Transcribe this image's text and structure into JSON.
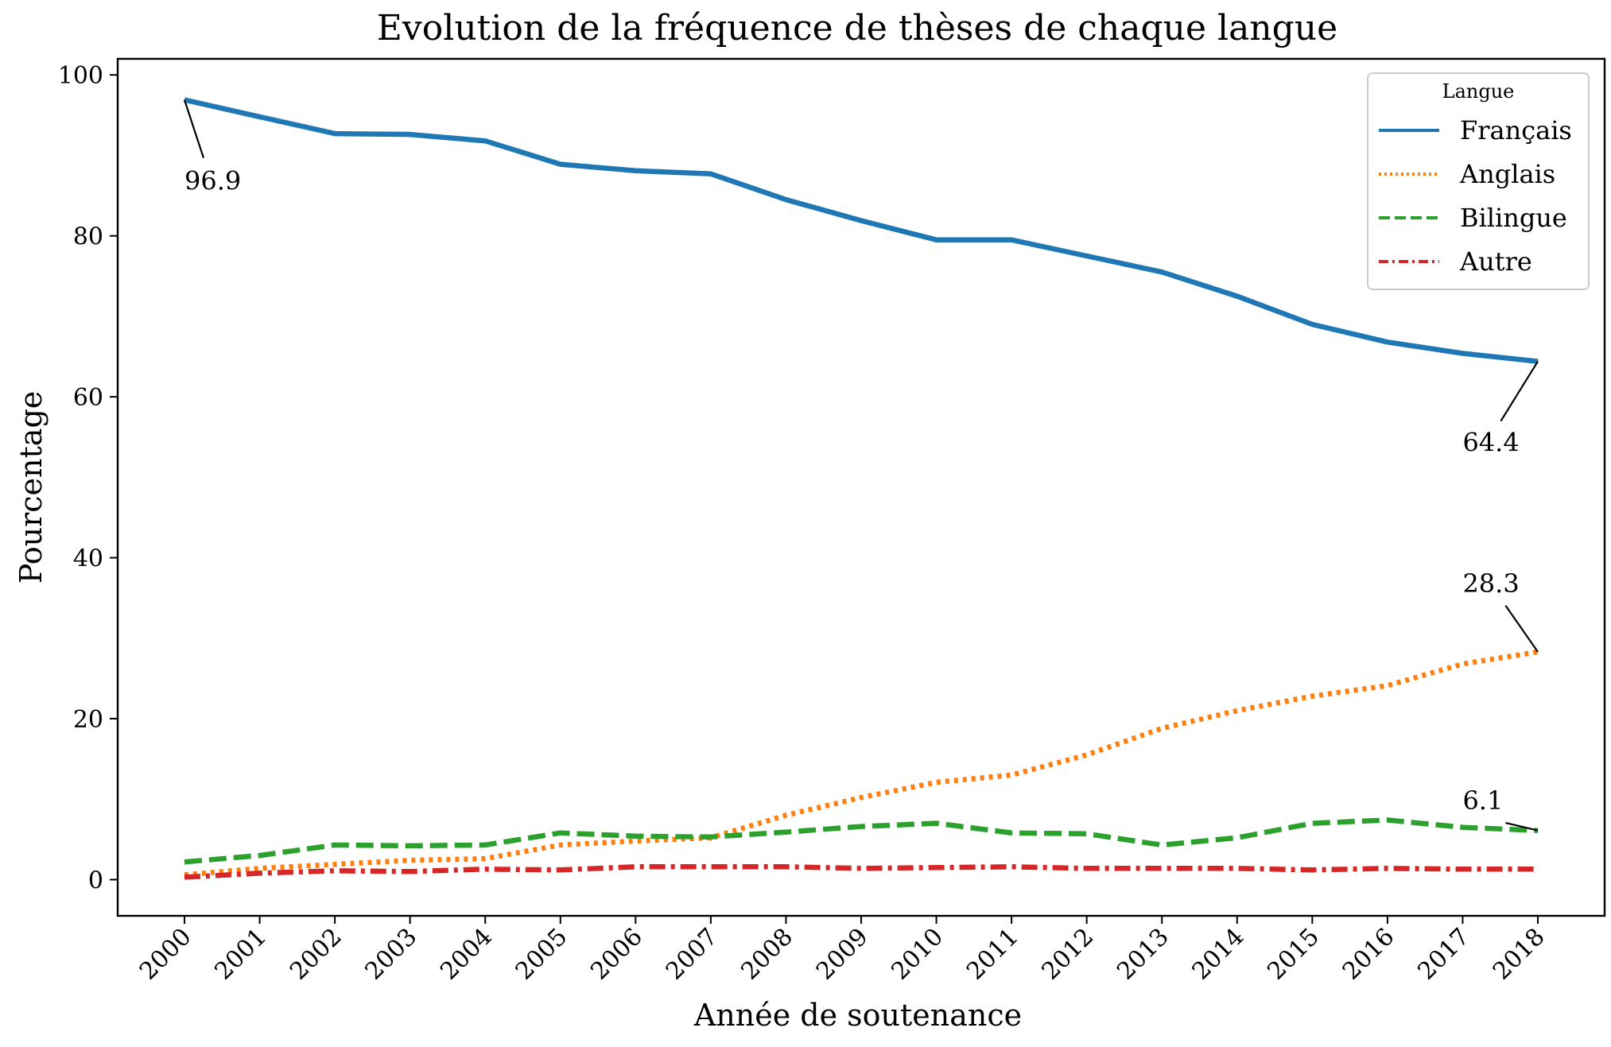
{
  "chart_data": {
    "type": "line",
    "title": "Evolution de la fréquence de thèses de chaque langue",
    "xlabel": "Année de soutenance",
    "ylabel": "Pourcentage",
    "x": [
      "2000",
      "2001",
      "2002",
      "2003",
      "2004",
      "2005",
      "2006",
      "2007",
      "2008",
      "2009",
      "2010",
      "2011",
      "2012",
      "2013",
      "2014",
      "2015",
      "2016",
      "2017",
      "2018"
    ],
    "ylim": [
      -4.5,
      102
    ],
    "yticks": [
      "0",
      "20",
      "40",
      "60",
      "80",
      "100"
    ],
    "grid": false,
    "legend": {
      "title": "Langue",
      "position": "top-right"
    },
    "series": [
      {
        "name": "Français",
        "style": "solid",
        "color": "#1f77b4",
        "values": [
          96.9,
          94.8,
          92.7,
          92.6,
          91.8,
          88.9,
          88.1,
          87.7,
          84.5,
          81.9,
          79.5,
          79.5,
          77.5,
          75.5,
          72.5,
          69.0,
          66.8,
          65.4,
          64.4
        ]
      },
      {
        "name": "Anglais",
        "style": "dotted",
        "color": "#ff7f0e",
        "values": [
          0.6,
          1.4,
          1.9,
          2.4,
          2.6,
          4.3,
          4.8,
          5.2,
          8.0,
          10.2,
          12.1,
          13.0,
          15.5,
          18.8,
          21.0,
          22.8,
          24.1,
          26.8,
          28.3
        ]
      },
      {
        "name": "Bilingue",
        "style": "dashed",
        "color": "#2ca02c",
        "values": [
          2.2,
          3.0,
          4.3,
          4.2,
          4.3,
          5.8,
          5.4,
          5.3,
          5.9,
          6.6,
          7.0,
          5.8,
          5.7,
          4.3,
          5.2,
          7.0,
          7.4,
          6.5,
          6.1
        ]
      },
      {
        "name": "Autre",
        "style": "dashdot",
        "color": "#d62728",
        "values": [
          0.3,
          0.8,
          1.1,
          1.0,
          1.3,
          1.2,
          1.6,
          1.6,
          1.6,
          1.4,
          1.5,
          1.6,
          1.4,
          1.4,
          1.4,
          1.2,
          1.4,
          1.3,
          1.3
        ]
      }
    ],
    "annotations": [
      {
        "text": "96.9",
        "x": "2000",
        "y": 96.9,
        "text_x": "2000",
        "text_y": 88.5
      },
      {
        "text": "64.4",
        "x": "2018",
        "y": 64.4,
        "text_x": "2017",
        "text_y": 56.0
      },
      {
        "text": "28.3",
        "x": "2018",
        "y": 28.3,
        "text_x": "2017",
        "text_y": 38.5
      },
      {
        "text": "6.1",
        "x": "2018",
        "y": 6.1,
        "text_x": "2017",
        "text_y": 11.5
      }
    ]
  }
}
